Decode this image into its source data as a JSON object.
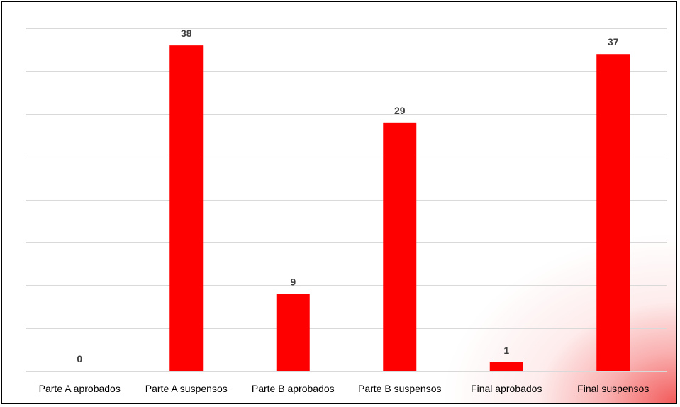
{
  "chart_data": {
    "type": "bar",
    "title": "",
    "xlabel": "",
    "ylabel": "",
    "categories": [
      "Parte A aprobados",
      "Parte A suspensos",
      "Parte B aprobados",
      "Parte B suspensos",
      "Final aprobados",
      "Final suspensos"
    ],
    "values": [
      0,
      38,
      9,
      29,
      1,
      37
    ],
    "ylim": [
      0,
      40
    ],
    "y_gridline_step": 5,
    "y_tick_labels_shown": false,
    "grid": true,
    "legend": "none",
    "data_labels": true,
    "bar_color": "#ff0000",
    "gridline_color": "#d9d9d9",
    "data_label_color": "#404040"
  }
}
